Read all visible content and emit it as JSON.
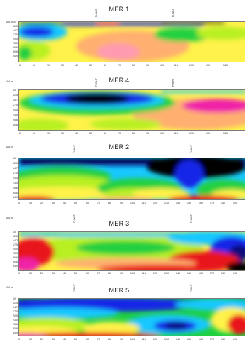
{
  "panels": [
    {
      "title": "MER 1",
      "ylabel": "ΔΩ, m",
      "yticks": [
        "10",
        "12.5",
        "14.7",
        "17.5",
        "20.5",
        "23.5",
        "26.6",
        "30.6",
        "34.9"
      ],
      "xticks": [
        "0",
        "10",
        "20",
        "30",
        "40",
        "50",
        "60",
        "70",
        "80",
        "90",
        "100",
        "110",
        "120",
        "130",
        "140"
      ],
      "points": [
        "PUNKT",
        "PUNKT"
      ]
    },
    {
      "title": "MER  4",
      "ylabel": "ΔΩ, m",
      "yticks": [
        "10",
        "12.5",
        "14.7",
        "17.5",
        "20.5",
        "23.5",
        "26.6",
        "30.6"
      ],
      "xticks": [
        "0",
        "10",
        "20",
        "30",
        "40",
        "50",
        "60",
        "70",
        "80",
        "90",
        "100",
        "110",
        "120",
        "130",
        "140"
      ],
      "points": [
        "PUNKT",
        "PUNKT"
      ]
    },
    {
      "title": "MER 2",
      "ylabel": "ΔΩ, m",
      "yticks": [
        "10",
        "12.5",
        "14.7",
        "17.5",
        "20.5",
        "23.5",
        "26.6",
        "30.6",
        "34.9"
      ],
      "xticks": [
        "0",
        "10",
        "20",
        "30",
        "40",
        "50",
        "60",
        "70",
        "80",
        "90",
        "100",
        "110",
        "120",
        "130",
        "140",
        "150",
        "160",
        "170",
        "180",
        "190"
      ],
      "points": [
        "PUNKT",
        "PUNKT"
      ]
    },
    {
      "title": "MER 3",
      "ylabel": "ΔΩ, m",
      "yticks": [
        "10",
        "12.5",
        "14.7",
        "17.5",
        "20.5",
        "23.5",
        "26.6",
        "30.6",
        "34.9"
      ],
      "xticks": [
        "0",
        "10",
        "20",
        "30",
        "40",
        "50",
        "60",
        "70",
        "80",
        "90",
        "100",
        "110",
        "120",
        "130",
        "140",
        "150",
        "160",
        "170",
        "180",
        "190"
      ],
      "points": [
        "PUNKT",
        "PUNKT"
      ]
    },
    {
      "title": "MER 5",
      "ylabel": "ΔΩ, m",
      "yticks": [
        "10",
        "12.5",
        "14.7",
        "17.5",
        "20.5",
        "23.5",
        "26.6",
        "30.6",
        "34.9"
      ],
      "xticks": [
        "0",
        "10",
        "20",
        "30",
        "40",
        "50",
        "60",
        "70",
        "80",
        "90",
        "100",
        "110",
        "120",
        "130",
        "140",
        "150",
        "160",
        "170",
        "180",
        "190"
      ],
      "points": [
        "PUNKT",
        "PUNKT"
      ]
    }
  ],
  "colors": {
    "black": "#000000",
    "navy": "#0a0a7a",
    "blue": "#1428e8",
    "cyan": "#18c8ff",
    "green": "#20d040",
    "lime": "#b8f020",
    "yellow": "#fff24a",
    "orange": "#ffb070",
    "red": "#e8181a",
    "magenta": "#f020a8"
  }
}
